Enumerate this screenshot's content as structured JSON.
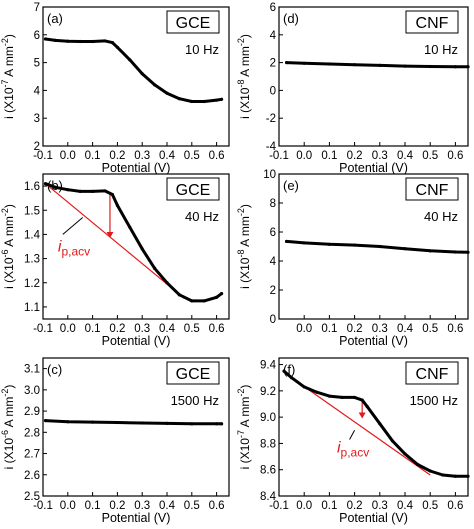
{
  "figure": {
    "xlabel": "Potential (V)"
  },
  "chart_data": [
    {
      "panel": "(a)",
      "type": "line",
      "electrode": "GCE",
      "frequency": "10 Hz",
      "xlabel": "Potential (V)",
      "ylabel": [
        "i (X10",
        "-7",
        " A mm",
        "-2",
        ")"
      ],
      "xlim": [
        -0.1,
        0.65
      ],
      "ylim": [
        2,
        7
      ],
      "xticks": [
        -0.1,
        0.0,
        0.1,
        0.2,
        0.3,
        0.4,
        0.5,
        0.6
      ],
      "xtick_labels": [
        "-0.1",
        "0.0",
        "0.1",
        "0.2",
        "0.3",
        "0.4",
        "0.5",
        "0.6"
      ],
      "yticks": [
        2,
        3,
        4,
        5,
        6,
        7
      ],
      "ytick_labels": [
        "2",
        "3",
        "4",
        "5",
        "6",
        "7"
      ],
      "series": [
        {
          "color": "#000000",
          "x": [
            -0.09,
            -0.05,
            0.0,
            0.05,
            0.1,
            0.15,
            0.18,
            0.2,
            0.25,
            0.3,
            0.35,
            0.4,
            0.45,
            0.5,
            0.55,
            0.6,
            0.62
          ],
          "y": [
            5.85,
            5.8,
            5.77,
            5.76,
            5.76,
            5.78,
            5.72,
            5.55,
            5.1,
            4.6,
            4.2,
            3.9,
            3.7,
            3.6,
            3.6,
            3.65,
            3.68
          ]
        }
      ],
      "annotation": null
    },
    {
      "panel": "(d)",
      "type": "line",
      "electrode": "CNF",
      "frequency": "10 Hz",
      "xlabel": "Potential (V)",
      "ylabel": [
        "i (X10",
        "-8",
        " A mm",
        "-2",
        ")"
      ],
      "xlim": [
        -0.1,
        0.65
      ],
      "ylim": [
        -4,
        6
      ],
      "xticks": [
        -0.1,
        0.0,
        0.1,
        0.2,
        0.3,
        0.4,
        0.5,
        0.6
      ],
      "xtick_labels": [
        "-0.1",
        "0.0",
        "0.1",
        "0.2",
        "0.3",
        "0.4",
        "0.5",
        "0.6"
      ],
      "yticks": [
        -4,
        -2,
        0,
        2,
        4,
        6
      ],
      "ytick_labels": [
        "-4",
        "-2",
        "0",
        "2",
        "4",
        "6"
      ],
      "series": [
        {
          "color": "#000000",
          "x": [
            -0.07,
            0.0,
            0.1,
            0.2,
            0.3,
            0.4,
            0.5,
            0.6,
            0.65
          ],
          "y": [
            2.0,
            1.95,
            1.9,
            1.85,
            1.8,
            1.75,
            1.72,
            1.7,
            1.7
          ]
        }
      ],
      "annotation": null
    },
    {
      "panel": "(b)",
      "type": "line",
      "electrode": "GCE",
      "frequency": "40 Hz",
      "xlabel": "Potential (V)",
      "ylabel": [
        "i (X10",
        "-6",
        " A mm",
        "-2",
        ")"
      ],
      "xlim": [
        -0.1,
        0.65
      ],
      "ylim": [
        1.05,
        1.65
      ],
      "xticks": [
        -0.1,
        0.0,
        0.1,
        0.2,
        0.3,
        0.4,
        0.5,
        0.6
      ],
      "xtick_labels": [
        "-0.1",
        "0.0",
        "0.1",
        "0.2",
        "0.3",
        "0.4",
        "0.5",
        "0.6"
      ],
      "yticks": [
        1.1,
        1.2,
        1.3,
        1.4,
        1.5,
        1.6
      ],
      "ytick_labels": [
        "1.1",
        "1.2",
        "1.3",
        "1.4",
        "1.5",
        "1.6"
      ],
      "series": [
        {
          "color": "#000000",
          "x": [
            -0.09,
            -0.05,
            0.0,
            0.05,
            0.1,
            0.15,
            0.18,
            0.2,
            0.25,
            0.3,
            0.35,
            0.4,
            0.45,
            0.5,
            0.55,
            0.6,
            0.62
          ],
          "y": [
            1.61,
            1.595,
            1.585,
            1.578,
            1.578,
            1.58,
            1.565,
            1.52,
            1.43,
            1.34,
            1.26,
            1.2,
            1.15,
            1.125,
            1.125,
            1.14,
            1.155
          ]
        }
      ],
      "annotation": {
        "label": "i",
        "subscript": "p,acv",
        "color": "#e31a1c",
        "baseline": {
          "x": [
            -0.09,
            0.47
          ],
          "y": [
            1.61,
            1.135
          ]
        },
        "arrow": {
          "x": 0.17,
          "y_from": 1.575,
          "y_to": 1.385
        },
        "leader": {
          "from": [
            0.06,
            1.47
          ],
          "to": [
            -0.02,
            1.4
          ]
        },
        "text_at": [
          -0.04,
          1.33
        ]
      }
    },
    {
      "panel": "(e)",
      "type": "line",
      "electrode": "CNF",
      "frequency": "40 Hz",
      "xlabel": "Potential (V)",
      "ylabel": [
        "i (X10",
        "-8",
        " A mm",
        "-2",
        ")"
      ],
      "xlim": [
        -0.1,
        0.65
      ],
      "ylim": [
        0,
        10
      ],
      "xticks": [
        0.0,
        0.1,
        0.2,
        0.3,
        0.4,
        0.5,
        0.6
      ],
      "xtick_labels": [
        "0.0",
        "0.1",
        "0.2",
        "0.3",
        "0.4",
        "0.5",
        "0.6"
      ],
      "yticks": [
        0,
        2,
        4,
        6,
        8,
        10
      ],
      "ytick_labels": [
        "0",
        "2",
        "4",
        "6",
        "8",
        "10"
      ],
      "series": [
        {
          "color": "#000000",
          "x": [
            -0.07,
            0.0,
            0.1,
            0.2,
            0.3,
            0.4,
            0.5,
            0.6,
            0.65
          ],
          "y": [
            5.35,
            5.25,
            5.15,
            5.1,
            5.0,
            4.85,
            4.7,
            4.62,
            4.6
          ]
        }
      ],
      "annotation": null
    },
    {
      "panel": "(c)",
      "type": "line",
      "electrode": "GCE",
      "frequency": "1500 Hz",
      "xlabel": "Potential (V)",
      "ylabel": [
        "i (X10",
        "-6",
        " A mm",
        "-2",
        ")"
      ],
      "xlim": [
        -0.1,
        0.65
      ],
      "ylim": [
        2.5,
        3.15
      ],
      "xticks": [
        -0.1,
        0.0,
        0.1,
        0.2,
        0.3,
        0.4,
        0.5,
        0.6
      ],
      "xtick_labels": [
        "-0.1",
        "0.0",
        "0.1",
        "0.2",
        "0.3",
        "0.4",
        "0.5",
        "0.6"
      ],
      "yticks": [
        2.5,
        2.6,
        2.7,
        2.8,
        2.9,
        3.0,
        3.1
      ],
      "ytick_labels": [
        "2.5",
        "2.6",
        "2.7",
        "2.8",
        "2.9",
        "3.0",
        "3.1"
      ],
      "series": [
        {
          "color": "#000000",
          "x": [
            -0.09,
            0.0,
            0.1,
            0.2,
            0.3,
            0.4,
            0.5,
            0.6,
            0.62
          ],
          "y": [
            2.855,
            2.85,
            2.848,
            2.846,
            2.844,
            2.842,
            2.84,
            2.84,
            2.84
          ]
        }
      ],
      "annotation": null
    },
    {
      "panel": "(f)",
      "type": "line",
      "electrode": "CNF",
      "frequency": "1500 Hz",
      "xlabel": "Potential (V)",
      "ylabel": [
        "i (X10",
        "-7",
        " A mm",
        "-2",
        ")"
      ],
      "xlim": [
        -0.1,
        0.65
      ],
      "ylim": [
        8.4,
        9.45
      ],
      "xticks": [
        -0.1,
        0.0,
        0.1,
        0.2,
        0.3,
        0.4,
        0.5,
        0.6
      ],
      "xtick_labels": [
        "-0.1",
        "0.0",
        "0.1",
        "0.2",
        "0.3",
        "0.4",
        "0.5",
        "0.6"
      ],
      "yticks": [
        8.4,
        8.6,
        8.8,
        9.0,
        9.2,
        9.4
      ],
      "ytick_labels": [
        "8.4",
        "8.6",
        "8.8",
        "9.0",
        "9.2",
        "9.4"
      ],
      "series": [
        {
          "color": "#000000",
          "x": [
            -0.08,
            -0.05,
            0.0,
            0.05,
            0.1,
            0.15,
            0.2,
            0.23,
            0.25,
            0.3,
            0.35,
            0.4,
            0.45,
            0.5,
            0.55,
            0.6,
            0.65
          ],
          "y": [
            9.35,
            9.3,
            9.23,
            9.19,
            9.16,
            9.15,
            9.15,
            9.13,
            9.08,
            8.95,
            8.82,
            8.72,
            8.64,
            8.59,
            8.56,
            8.55,
            8.55
          ]
        }
      ],
      "annotation": {
        "label": "i",
        "subscript": "p,acv",
        "color": "#e31a1c",
        "baseline": {
          "x": [
            -0.08,
            0.5
          ],
          "y": [
            9.34,
            8.56
          ]
        },
        "arrow": {
          "x": 0.23,
          "y_from": 9.13,
          "y_to": 8.99
        },
        "leader": {
          "from": [
            0.2,
            8.9
          ],
          "to": [
            0.18,
            8.83
          ]
        },
        "text_at": [
          0.13,
          8.73
        ]
      }
    }
  ]
}
